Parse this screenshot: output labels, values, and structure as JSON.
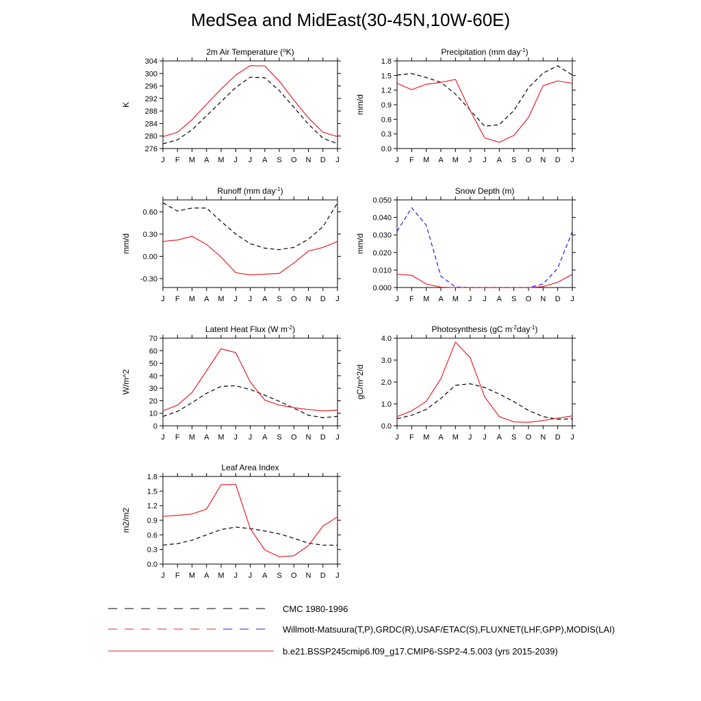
{
  "figure": {
    "title": "MedSea and MidEast(30-45N,10W-60E)",
    "months": [
      "J",
      "F",
      "M",
      "A",
      "M",
      "J",
      "J",
      "A",
      "S",
      "O",
      "N",
      "D",
      "J"
    ]
  },
  "colors": {
    "model": "#e8202a",
    "cmc": "#000000",
    "obs": "#1a1aff",
    "axis": "#000000"
  },
  "legend": {
    "entries": [
      {
        "label": "CMC 1980-1996",
        "style": "dashed",
        "colors": [
          "#000000"
        ]
      },
      {
        "label": "Willmott-Matsuura(T,P),GRDC(R),USAF/ETAC(S),FLUXNET(LHF,GPP),MODIS(LAI)",
        "style": "dashed",
        "colors": [
          "#e8202a",
          "#1a1aff"
        ]
      },
      {
        "label": "b.e21.BSSP245cmip6.f09_g17.CMIP6-SSP2-4.5.003 (yrs 2015-2039)",
        "style": "solid",
        "colors": [
          "#e8202a"
        ]
      }
    ]
  },
  "chart_data": [
    {
      "type": "line",
      "title_parts": [
        "2m Air Temperature (",
        "o",
        "K)"
      ],
      "ylabel": "K",
      "ylim": [
        276,
        304
      ],
      "yticks": [
        276,
        280,
        284,
        288,
        292,
        296,
        300,
        304
      ],
      "ytick_labels": [
        "276",
        "280",
        "284",
        "288",
        "292",
        "296",
        "300",
        "304"
      ],
      "series": [
        {
          "style": "dashed",
          "color": "#000000",
          "values": [
            277.5,
            278.8,
            282.0,
            286.5,
            291.0,
            295.5,
            298.8,
            298.6,
            294.5,
            289.2,
            283.8,
            279.3,
            277.5
          ]
        },
        {
          "style": "solid",
          "color": "#e8202a",
          "values": [
            279.8,
            281.2,
            285.2,
            290.2,
            295.0,
            299.5,
            302.5,
            302.4,
            297.5,
            291.5,
            285.8,
            281.2,
            279.8
          ]
        }
      ]
    },
    {
      "type": "line",
      "title_parts": [
        "Precipitation (mm day",
        "-1",
        ")"
      ],
      "ylabel": "mm/d",
      "ylim": [
        0,
        1.8
      ],
      "yticks": [
        0,
        0.3,
        0.6,
        0.9,
        1.2,
        1.5,
        1.8
      ],
      "ytick_labels": [
        "0.0",
        "0.3",
        "0.6",
        "0.9",
        "1.2",
        "1.5",
        "1.8"
      ],
      "series": [
        {
          "style": "dashed",
          "color": "#000000",
          "values": [
            1.51,
            1.54,
            1.46,
            1.36,
            1.12,
            0.79,
            0.46,
            0.49,
            0.78,
            1.25,
            1.55,
            1.7,
            1.51
          ]
        },
        {
          "style": "solid",
          "color": "#e8202a",
          "values": [
            1.34,
            1.21,
            1.32,
            1.36,
            1.42,
            0.78,
            0.22,
            0.13,
            0.27,
            0.64,
            1.29,
            1.39,
            1.34
          ]
        }
      ]
    },
    {
      "type": "line",
      "title_parts": [
        "Runoff (mm day",
        "-1",
        ")"
      ],
      "ylabel": "mm/d",
      "ylim": [
        -0.42,
        0.76
      ],
      "yticks": [
        -0.3,
        0,
        0.3,
        0.6
      ],
      "ytick_labels": [
        "-0.30",
        "0.00",
        "0.30",
        "0.60"
      ],
      "series": [
        {
          "style": "dashed",
          "color": "#000000",
          "values": [
            0.72,
            0.61,
            0.65,
            0.65,
            0.47,
            0.3,
            0.17,
            0.11,
            0.09,
            0.12,
            0.23,
            0.4,
            0.72
          ]
        },
        {
          "style": "solid",
          "color": "#e8202a",
          "values": [
            0.2,
            0.22,
            0.27,
            0.16,
            -0.01,
            -0.22,
            -0.25,
            -0.24,
            -0.23,
            -0.09,
            0.07,
            0.12,
            0.2
          ]
        }
      ]
    },
    {
      "type": "line",
      "title_parts": [
        "Snow Depth (m)"
      ],
      "ylabel": "mm/d",
      "ylim": [
        0,
        0.05
      ],
      "yticks": [
        0,
        0.01,
        0.02,
        0.03,
        0.04,
        0.05
      ],
      "ytick_labels": [
        "0.000",
        "0.010",
        "0.020",
        "0.030",
        "0.040",
        "0.050"
      ],
      "series": [
        {
          "style": "dashed",
          "color": "#1a1aff",
          "values": [
            0.032,
            0.0455,
            0.0355,
            0.0065,
            0.0003,
            0.0,
            0.0,
            0.0,
            0.0,
            0.0,
            0.002,
            0.011,
            0.032
          ]
        },
        {
          "style": "solid",
          "color": "#e8202a",
          "values": [
            0.0075,
            0.007,
            0.002,
            0.0002,
            0.0,
            0.0,
            0.0,
            0.0,
            0.0,
            0.0,
            0.0005,
            0.003,
            0.0075
          ]
        }
      ]
    },
    {
      "type": "line",
      "title_parts": [
        "Latent Heat Flux (W m",
        "-2",
        ")"
      ],
      "ylabel": "W/m^2",
      "ylim": [
        0,
        70
      ],
      "yticks": [
        0,
        10,
        20,
        30,
        40,
        50,
        60,
        70
      ],
      "ytick_labels": [
        "0",
        "10",
        "20",
        "30",
        "40",
        "50",
        "60",
        "70"
      ],
      "series": [
        {
          "style": "dashed",
          "color": "#000000",
          "values": [
            7.5,
            11.5,
            18.5,
            26.0,
            31.5,
            32.0,
            29.0,
            24.5,
            19.5,
            14.0,
            8.5,
            6.5,
            7.5
          ]
        },
        {
          "style": "solid",
          "color": "#e8202a",
          "values": [
            12.0,
            16.5,
            26.5,
            44.0,
            61.5,
            58.5,
            35.0,
            20.5,
            16.5,
            14.5,
            13.0,
            12.0,
            12.5
          ]
        }
      ]
    },
    {
      "type": "line",
      "title_parts": [
        "Photosynthesis (gC m",
        "-2",
        "day",
        "-1",
        ")"
      ],
      "ylabel": "gC/m^2/d",
      "ylim": [
        0,
        4.0
      ],
      "yticks": [
        0,
        1,
        2,
        3,
        4
      ],
      "ytick_labels": [
        "0.0",
        "1.0",
        "2.0",
        "3.0",
        "4.0"
      ],
      "series": [
        {
          "style": "dashed",
          "color": "#000000",
          "values": [
            0.32,
            0.48,
            0.75,
            1.25,
            1.85,
            1.92,
            1.75,
            1.45,
            1.1,
            0.7,
            0.42,
            0.3,
            0.32
          ]
        },
        {
          "style": "solid",
          "color": "#e8202a",
          "values": [
            0.42,
            0.68,
            1.12,
            2.15,
            3.82,
            3.12,
            1.32,
            0.42,
            0.18,
            0.16,
            0.24,
            0.35,
            0.45
          ]
        }
      ]
    },
    {
      "type": "line",
      "title_parts": [
        "Leaf Area Index"
      ],
      "ylabel": "m2/m2",
      "ylim": [
        0,
        1.8
      ],
      "yticks": [
        0,
        0.3,
        0.6,
        0.9,
        1.2,
        1.5,
        1.8
      ],
      "ytick_labels": [
        "0.0",
        "0.3",
        "0.6",
        "0.9",
        "1.2",
        "1.5",
        "1.8"
      ],
      "series": [
        {
          "style": "dashed",
          "color": "#000000",
          "values": [
            0.39,
            0.42,
            0.49,
            0.6,
            0.71,
            0.76,
            0.73,
            0.68,
            0.62,
            0.53,
            0.43,
            0.39,
            0.39
          ]
        },
        {
          "style": "solid",
          "color": "#e8202a",
          "values": [
            0.98,
            1.0,
            1.03,
            1.13,
            1.63,
            1.64,
            0.73,
            0.29,
            0.15,
            0.17,
            0.38,
            0.78,
            0.97
          ]
        }
      ]
    }
  ]
}
